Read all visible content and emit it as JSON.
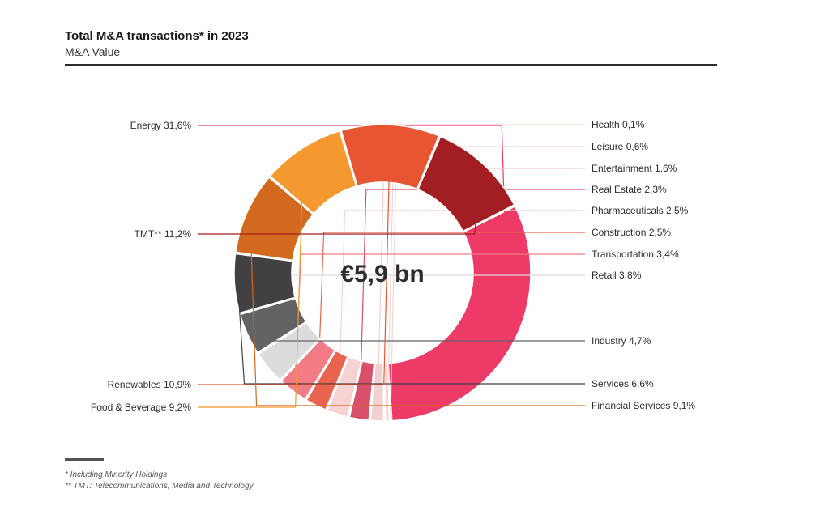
{
  "header": {
    "title": "Total M&A transactions* in 2023",
    "subtitle": "M&A Value"
  },
  "footnotes": [
    "* Including Minority Holdings",
    "** TMT: Telecommunications, Media and Technology"
  ],
  "chart_data": {
    "type": "pie",
    "variant": "donut",
    "center_label": "€5,9 bn",
    "slices": [
      {
        "name": "Energy",
        "value": 31.6,
        "label": "31,6%",
        "color": "#ee3a66",
        "side": "left"
      },
      {
        "name": "Health",
        "value": 0.1,
        "label": "0,1%",
        "color": "#f7d6d2",
        "side": "right"
      },
      {
        "name": "Leisure",
        "value": 0.6,
        "label": "0,6%",
        "color": "#f9d3d3",
        "side": "right"
      },
      {
        "name": "Entertainment",
        "value": 1.6,
        "label": "1,6%",
        "color": "#f1d0cf",
        "side": "right"
      },
      {
        "name": "Real Estate",
        "value": 2.3,
        "label": "2,3%",
        "color": "#d8506a",
        "side": "right"
      },
      {
        "name": "Pharmaceuticals",
        "value": 2.5,
        "label": "2,5%",
        "color": "#f6d3d2",
        "side": "right"
      },
      {
        "name": "Construction",
        "value": 2.5,
        "label": "2,5%",
        "color": "#e8644e",
        "side": "right"
      },
      {
        "name": "Transportation",
        "value": 3.4,
        "label": "3,4%",
        "color": "#f27b85",
        "side": "right"
      },
      {
        "name": "Retail",
        "value": 3.8,
        "label": "3,8%",
        "color": "#dcdcdc",
        "side": "right"
      },
      {
        "name": "Industry",
        "value": 4.7,
        "label": "4,7%",
        "color": "#636265",
        "side": "right"
      },
      {
        "name": "Services",
        "value": 6.6,
        "label": "6,6%",
        "color": "#414042",
        "side": "right"
      },
      {
        "name": "Financial Services",
        "value": 9.1,
        "label": "9,1%",
        "color": "#d2691e",
        "side": "right"
      },
      {
        "name": "Food & Beverage",
        "value": 9.2,
        "label": "9,2%",
        "color": "#f4982f",
        "side": "left"
      },
      {
        "name": "Renewables",
        "value": 10.9,
        "label": "10,9%",
        "color": "#e85532",
        "side": "left"
      },
      {
        "name": "TMT**",
        "value": 11.2,
        "label": "11,2%",
        "color": "#a31e22",
        "side": "left"
      }
    ]
  }
}
